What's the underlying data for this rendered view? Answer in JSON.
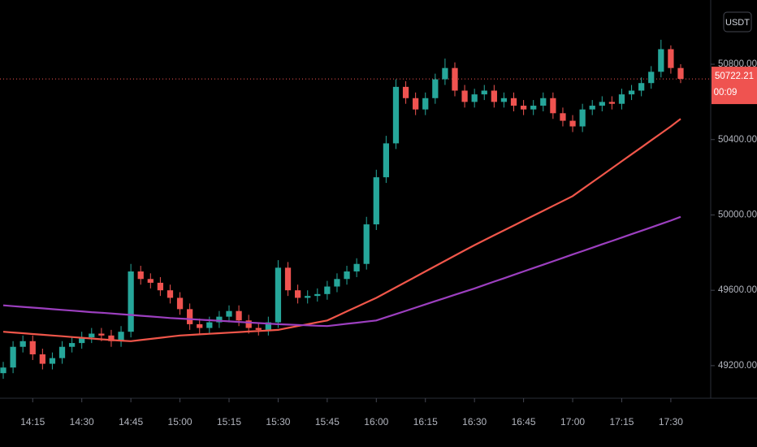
{
  "chart_data": {
    "type": "candlestick",
    "currency": "USDT",
    "x": [
      "14:06",
      "14:09",
      "14:12",
      "14:15",
      "14:18",
      "14:21",
      "14:24",
      "14:27",
      "14:30",
      "14:33",
      "14:36",
      "14:39",
      "14:42",
      "14:45",
      "14:48",
      "14:51",
      "14:54",
      "14:57",
      "15:00",
      "15:03",
      "15:06",
      "15:09",
      "15:12",
      "15:15",
      "15:18",
      "15:21",
      "15:24",
      "15:27",
      "15:30",
      "15:33",
      "15:36",
      "15:39",
      "15:42",
      "15:45",
      "15:48",
      "15:51",
      "15:54",
      "15:57",
      "16:00",
      "16:03",
      "16:06",
      "16:09",
      "16:12",
      "16:15",
      "16:18",
      "16:21",
      "16:24",
      "16:27",
      "16:30",
      "16:33",
      "16:36",
      "16:39",
      "16:42",
      "16:45",
      "16:48",
      "16:51",
      "16:54",
      "16:57",
      "17:00",
      "17:03",
      "17:06",
      "17:09",
      "17:12",
      "17:15",
      "17:18",
      "17:21",
      "17:24",
      "17:27",
      "17:30",
      "17:33"
    ],
    "open": [
      49160,
      49190,
      49300,
      49330,
      49260,
      49210,
      49240,
      49300,
      49320,
      49350,
      49370,
      49360,
      49330,
      49380,
      49700,
      49660,
      49640,
      49600,
      49560,
      49500,
      49420,
      49400,
      49430,
      49460,
      49490,
      49440,
      49400,
      49390,
      49430,
      49720,
      49600,
      49560,
      49570,
      49580,
      49620,
      49660,
      49700,
      49740,
      49950,
      50200,
      50380,
      50680,
      50620,
      50560,
      50620,
      50720,
      50780,
      50660,
      50600,
      50640,
      50660,
      50600,
      50620,
      50580,
      50560,
      50580,
      50620,
      50540,
      50500,
      50470,
      50560,
      50580,
      50600,
      50590,
      50640,
      50660,
      50700,
      50760,
      50880,
      50780
    ],
    "high": [
      49220,
      49330,
      49360,
      49360,
      49290,
      49270,
      49330,
      49350,
      49380,
      49400,
      49400,
      49390,
      49410,
      49740,
      49730,
      49690,
      49670,
      49630,
      49590,
      49530,
      49450,
      49460,
      49490,
      49520,
      49520,
      49470,
      49430,
      49460,
      49760,
      49750,
      49630,
      49600,
      49610,
      49650,
      49690,
      49730,
      49770,
      49990,
      50240,
      50420,
      50720,
      50710,
      50650,
      50650,
      50750,
      50830,
      50810,
      50690,
      50670,
      50690,
      50690,
      50650,
      50650,
      50610,
      50610,
      50650,
      50650,
      50570,
      50530,
      50590,
      50610,
      50630,
      50630,
      50670,
      50690,
      50730,
      50790,
      50930,
      50900,
      50800
    ],
    "low": [
      49130,
      49160,
      49270,
      49230,
      49180,
      49180,
      49210,
      49270,
      49290,
      49320,
      49330,
      49300,
      49300,
      49350,
      49630,
      49610,
      49570,
      49530,
      49470,
      49390,
      49370,
      49370,
      49400,
      49430,
      49410,
      49370,
      49360,
      49360,
      49400,
      49570,
      49530,
      49530,
      49540,
      49550,
      49590,
      49630,
      49670,
      49710,
      49920,
      50170,
      50350,
      50590,
      50530,
      50530,
      50590,
      50690,
      50630,
      50570,
      50570,
      50610,
      50570,
      50570,
      50550,
      50530,
      50530,
      50550,
      50510,
      50470,
      50440,
      50440,
      50530,
      50550,
      50560,
      50560,
      50610,
      50630,
      50670,
      50730,
      50750,
      50700
    ],
    "close": [
      49190,
      49300,
      49330,
      49260,
      49210,
      49240,
      49300,
      49320,
      49350,
      49370,
      49360,
      49330,
      49380,
      49700,
      49660,
      49640,
      49600,
      49560,
      49500,
      49420,
      49400,
      49430,
      49460,
      49490,
      49440,
      49400,
      49390,
      49430,
      49720,
      49600,
      49560,
      49570,
      49580,
      49620,
      49660,
      49700,
      49740,
      49950,
      50200,
      50380,
      50680,
      50620,
      50560,
      50620,
      50720,
      50780,
      50660,
      50600,
      50640,
      50660,
      50600,
      50620,
      50580,
      50560,
      50580,
      50620,
      50540,
      50500,
      50470,
      50560,
      50580,
      50600,
      50590,
      50640,
      50660,
      50700,
      50760,
      50880,
      50780,
      50722.21
    ],
    "up_color": "#26a69a",
    "down_color": "#ef5350",
    "overlays": [
      {
        "color": "#f0564a",
        "values": [
          49380,
          49376,
          49372,
          49368,
          49364,
          49360,
          49356,
          49352,
          49348,
          49344,
          49340,
          49336,
          49333,
          49330,
          49336,
          49342,
          49348,
          49354,
          49360,
          49363,
          49366,
          49369,
          49372,
          49375,
          49378,
          49381,
          49384,
          49387,
          49390,
          49400,
          49410,
          49420,
          49430,
          49440,
          49464,
          49488,
          49512,
          49536,
          49560,
          49588,
          49616,
          49644,
          49672,
          49700,
          49728,
          49756,
          49784,
          49812,
          49840,
          49866,
          49892,
          49918,
          49944,
          49970,
          49996,
          50022,
          50048,
          50074,
          50100,
          50137,
          50174,
          50211,
          50248,
          50285,
          50322,
          50359,
          50396,
          50433,
          50470,
          50510
        ]
      },
      {
        "color": "#9c3fbf",
        "values": [
          49520,
          49516,
          49512,
          49508,
          49504,
          49500,
          49496,
          49492,
          49488,
          49484,
          49481,
          49477,
          49473,
          49469,
          49465,
          49461,
          49457,
          49453,
          49450,
          49447,
          49444,
          49441,
          49438,
          49435,
          49432,
          49429,
          49426,
          49423,
          49420,
          49418,
          49416,
          49414,
          49412,
          49410,
          49416,
          49422,
          49428,
          49434,
          49440,
          49457,
          49474,
          49491,
          49508,
          49525,
          49542,
          49559,
          49576,
          49593,
          49610,
          49628,
          49646,
          49664,
          49682,
          49700,
          49718,
          49736,
          49754,
          49772,
          49790,
          49808,
          49826,
          49844,
          49862,
          49880,
          49898,
          49916,
          49934,
          49952,
          49970,
          49990
        ]
      }
    ],
    "ylim": [
      49027,
      51141
    ],
    "yticks": [
      {
        "value": 49200,
        "label": "49200.00"
      },
      {
        "value": 49600,
        "label": "49600.00"
      },
      {
        "value": 50000,
        "label": "50000.00"
      },
      {
        "value": 50400,
        "label": "50400.00"
      },
      {
        "value": 50800,
        "label": "50800.00"
      }
    ],
    "xticks": [
      "14:15",
      "14:30",
      "14:45",
      "15:00",
      "15:15",
      "15:30",
      "15:45",
      "16:00",
      "16:15",
      "16:30",
      "16:45",
      "17:00",
      "17:15",
      "17:30"
    ],
    "last_price": 50722.21,
    "countdown": "00:09",
    "price_line_color": "#ef5350"
  }
}
